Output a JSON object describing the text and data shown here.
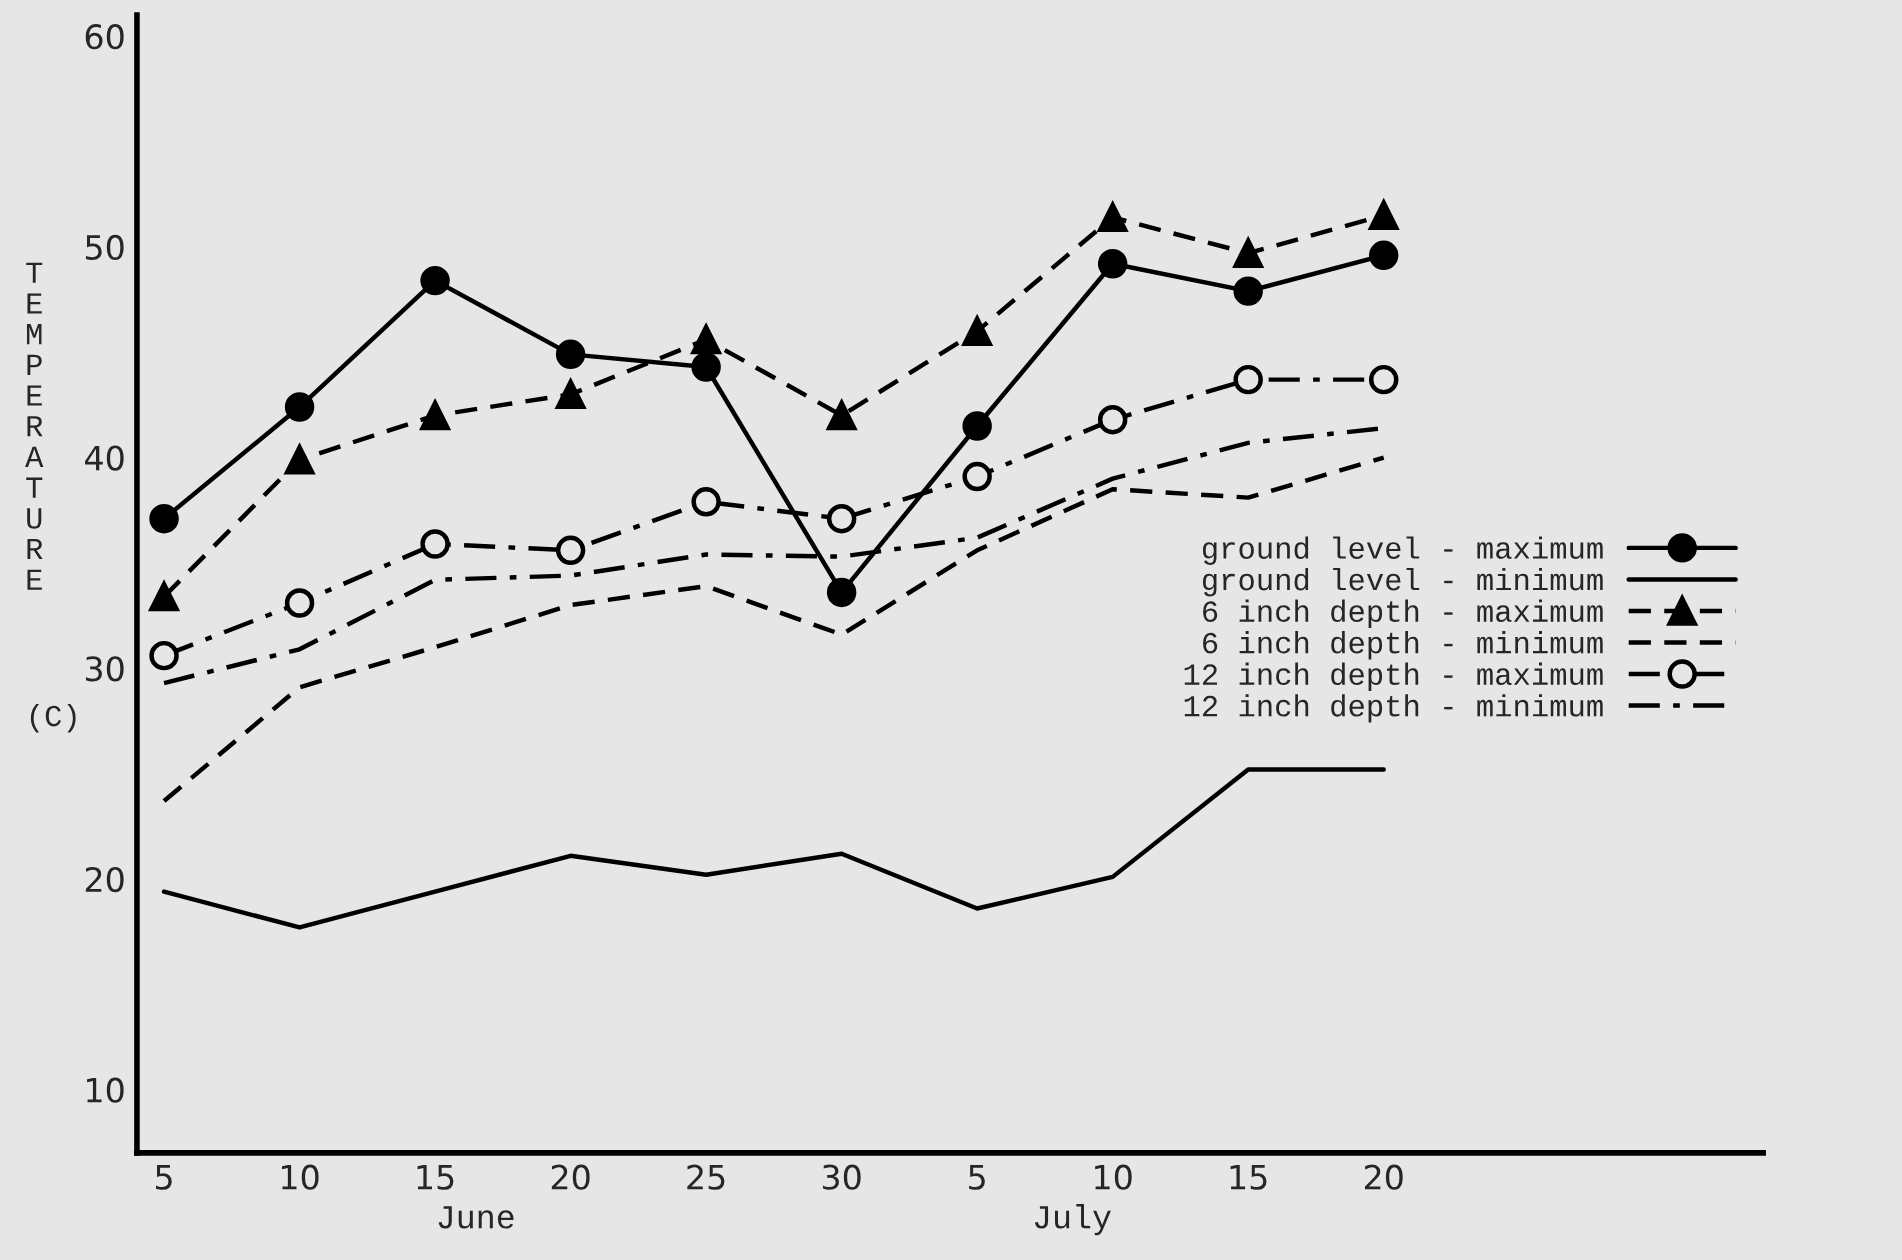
{
  "chart_data": {
    "type": "line",
    "ylabel": "TEMPERATURE (C)",
    "categories": [
      "5",
      "10",
      "15",
      "20",
      "25",
      "30",
      "5",
      "10",
      "15",
      "20"
    ],
    "annotations": [
      "June",
      "July"
    ],
    "ylim": [
      7,
      61
    ],
    "yticks": [
      10,
      20,
      30,
      40,
      50,
      60
    ],
    "grid": false,
    "legend": "right",
    "series": [
      {
        "name": "ground level - maximum",
        "color": "#000000",
        "marker": "circle",
        "line_style": "solid",
        "values": [
          37.1,
          42.4,
          48.4,
          44.9,
          44.3,
          33.6,
          41.5,
          49.2,
          47.9,
          49.6
        ]
      },
      {
        "name": "ground level - minimum",
        "color": "#000000",
        "marker": "none",
        "line_style": "solid",
        "values": [
          19.4,
          17.7,
          19.4,
          21.1,
          20.2,
          21.2,
          18.6,
          20.1,
          25.2,
          25.2
        ]
      },
      {
        "name": "6 inch depth - maximum",
        "color": "#000000",
        "marker": "triangle",
        "line_style": "dashed",
        "values": [
          33.4,
          39.9,
          42.0,
          43.0,
          45.6,
          42.0,
          46.0,
          51.4,
          49.7,
          51.5
        ]
      },
      {
        "name": "6 inch depth - minimum",
        "color": "#000000",
        "marker": "none",
        "line_style": "dashed",
        "values": [
          23.7,
          29.1,
          31.0,
          33.0,
          33.9,
          31.6,
          35.6,
          38.5,
          38.1,
          40.0
        ]
      },
      {
        "name": "12 inch depth - maximum",
        "color": "#000000",
        "marker": "open circle",
        "line_style": "dashdot",
        "values": [
          30.6,
          33.1,
          35.9,
          35.6,
          37.9,
          37.1,
          39.1,
          41.8,
          43.7,
          43.7
        ]
      },
      {
        "name": "12 inch depth - minimum",
        "color": "#000000",
        "marker": "none",
        "line_style": "dashdot",
        "values": [
          29.3,
          30.9,
          34.2,
          34.4,
          35.4,
          35.3,
          36.2,
          39.0,
          40.7,
          41.4
        ]
      }
    ]
  }
}
